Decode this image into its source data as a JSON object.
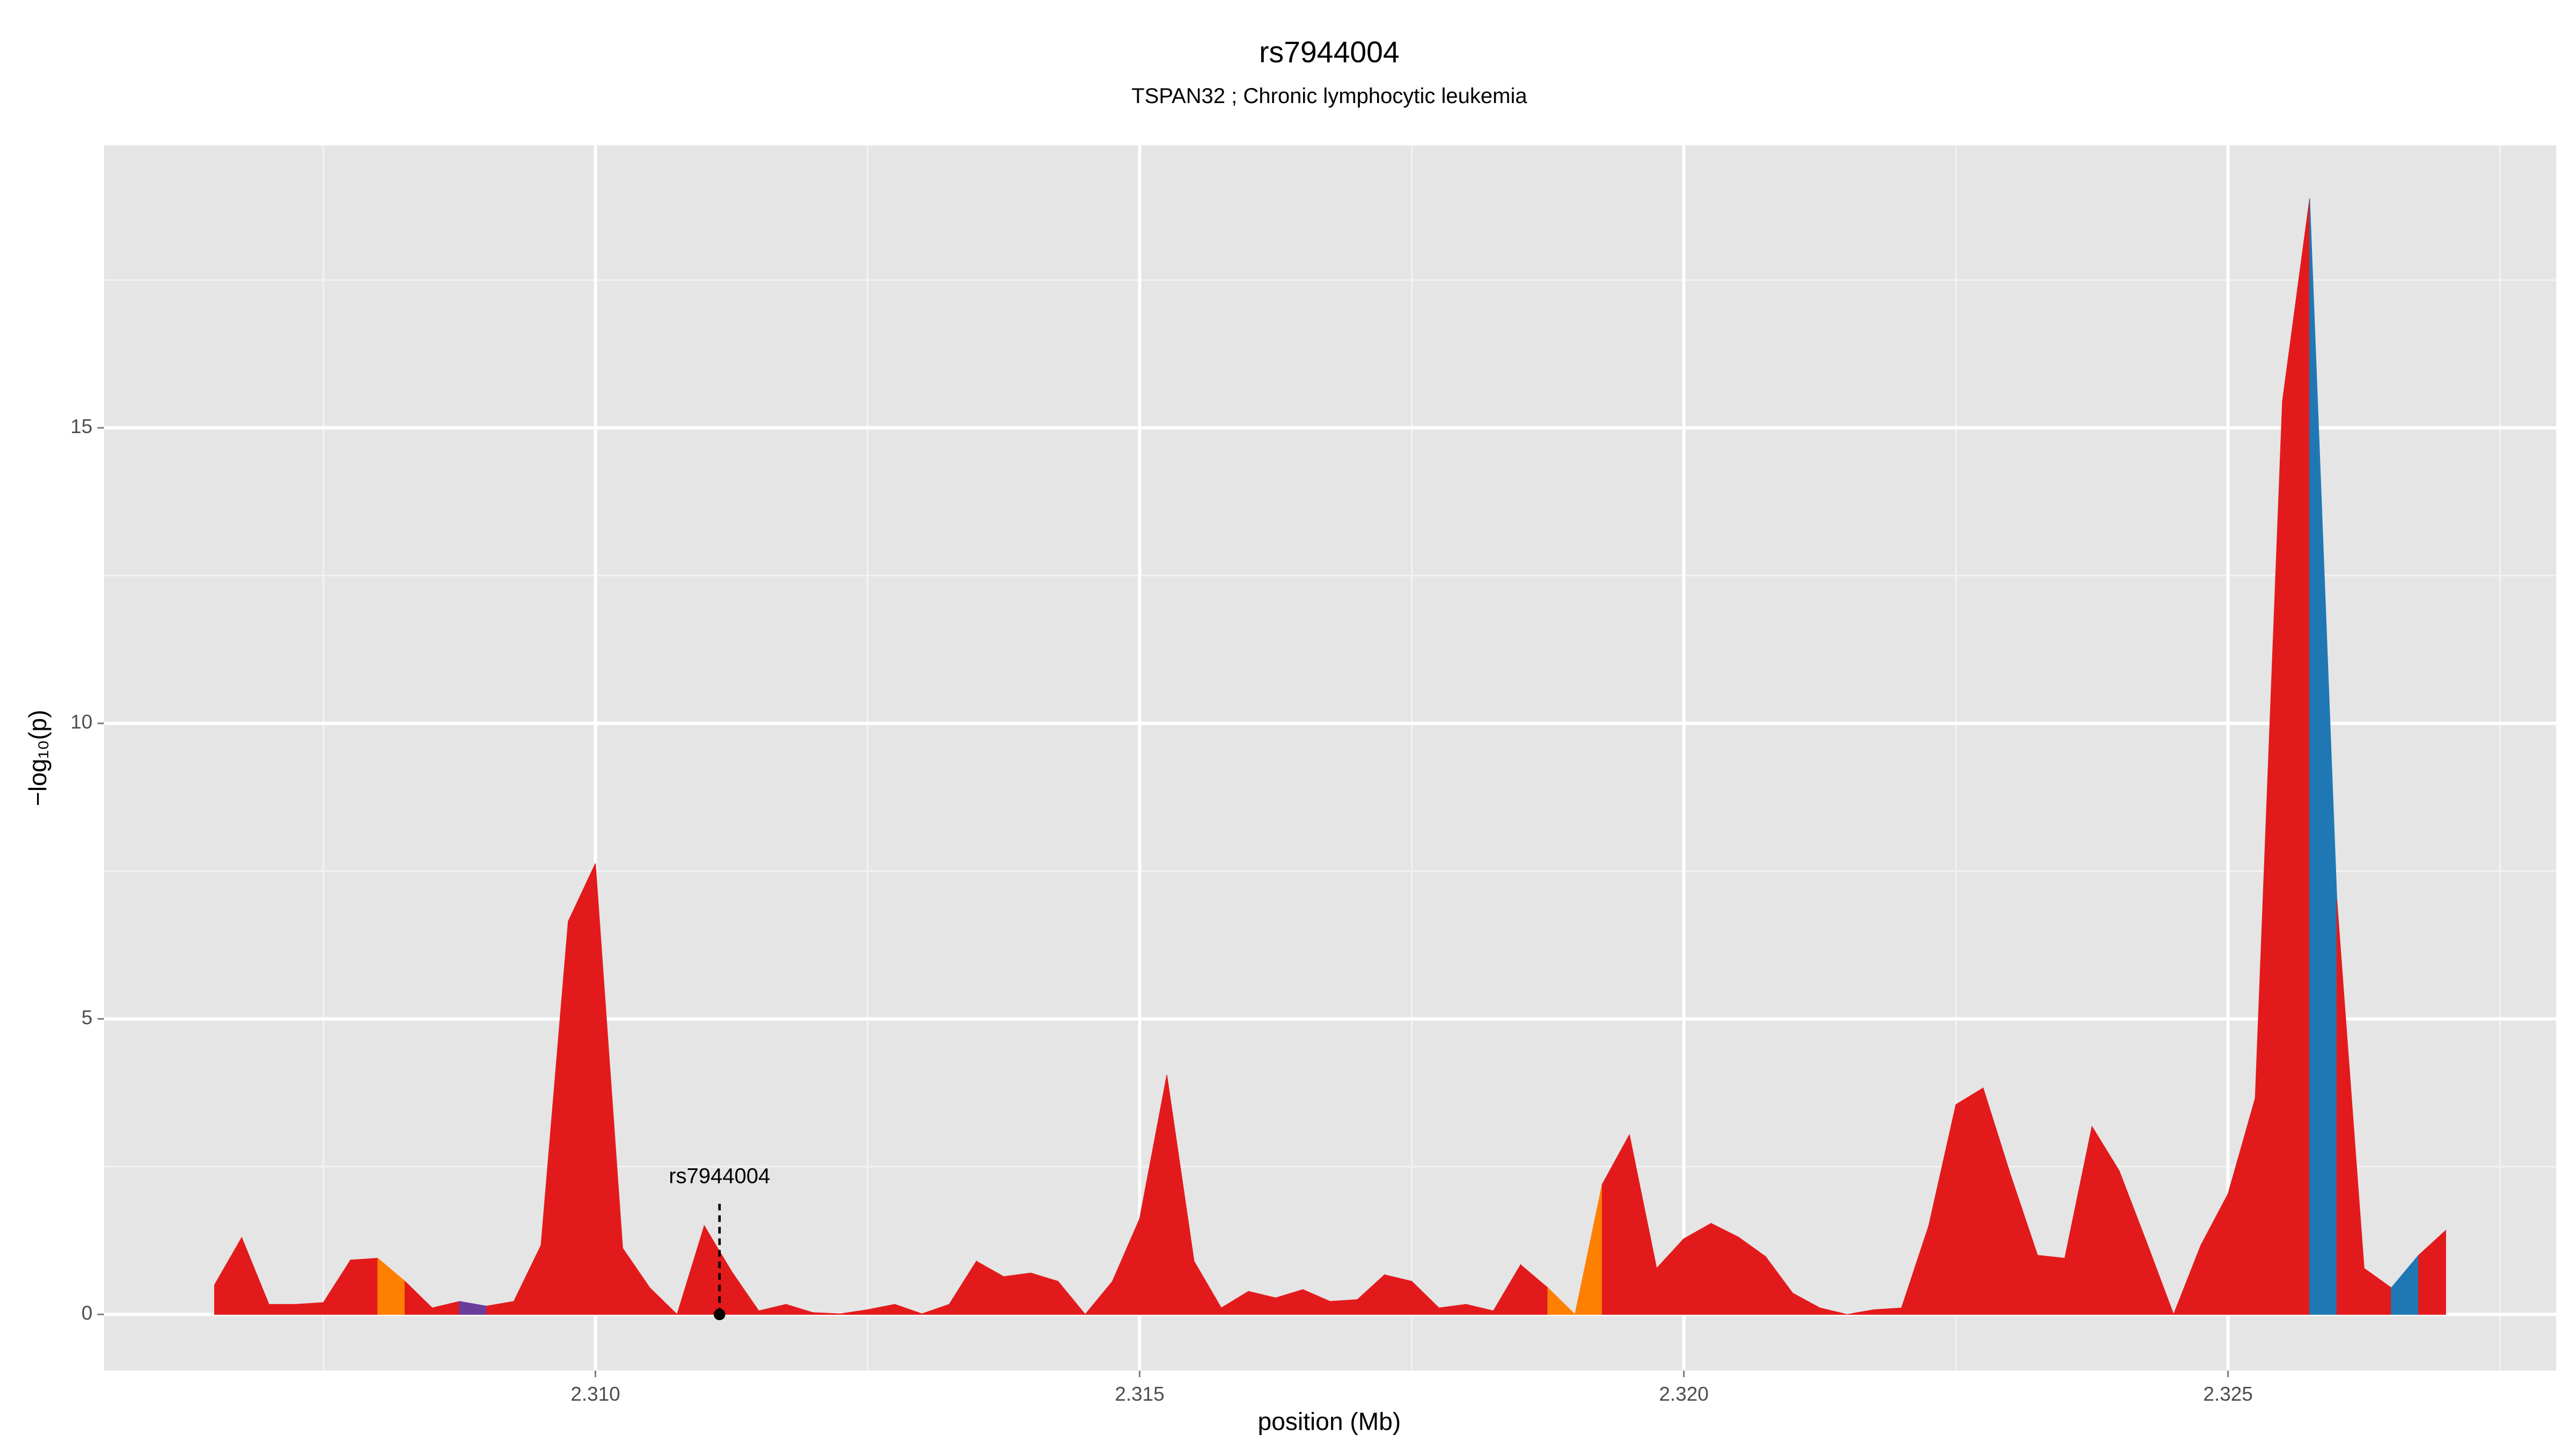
{
  "chart_data": {
    "type": "area",
    "title": "rs7944004",
    "subtitle": "TSPAN32 ; Chronic lymphocytic leukemia",
    "xlabel": "position (Mb)",
    "ylabel": "−log₁₀(p)",
    "xlim": [
      2.305485,
      2.328015
    ],
    "ylim": [
      -0.95,
      19.78
    ],
    "xticks": [
      {
        "value": 2.31,
        "label": "2.310"
      },
      {
        "value": 2.315,
        "label": "2.315"
      },
      {
        "value": 2.32,
        "label": "2.320"
      },
      {
        "value": 2.325,
        "label": "2.325"
      }
    ],
    "yticks": [
      0,
      5,
      10,
      15
    ],
    "x_minor_ticks": [
      2.3075,
      2.3125,
      2.3175,
      2.3225,
      2.3275
    ],
    "y_minor_ticks": [
      2.5,
      7.5,
      12.5,
      17.5
    ],
    "grid": true,
    "x": [
      2.3065,
      2.30675,
      2.307,
      2.30725,
      2.3075,
      2.30775,
      2.308,
      2.30825,
      2.3085,
      2.30875,
      2.309,
      2.30925,
      2.3095,
      2.30975,
      2.31,
      2.31025,
      2.3105,
      2.31075,
      2.311,
      2.31125,
      2.3115,
      2.31175,
      2.312,
      2.31225,
      2.3125,
      2.31275,
      2.313,
      2.31325,
      2.3135,
      2.31375,
      2.314,
      2.31425,
      2.3145,
      2.31475,
      2.315,
      2.31525,
      2.3155,
      2.31575,
      2.316,
      2.31625,
      2.3165,
      2.31675,
      2.317,
      2.31725,
      2.3175,
      2.31775,
      2.318,
      2.31825,
      2.3185,
      2.31875,
      2.319,
      2.31925,
      2.3195,
      2.31975,
      2.32,
      2.32025,
      2.3205,
      2.32075,
      2.321,
      2.32125,
      2.3215,
      2.32175,
      2.322,
      2.32225,
      2.3225,
      2.32275,
      2.323,
      2.32325,
      2.3235,
      2.32375,
      2.324,
      2.32425,
      2.3245,
      2.32475,
      2.325,
      2.32525,
      2.3255,
      2.32575,
      2.326,
      2.32625,
      2.3265,
      2.32675,
      2.327
    ],
    "values": [
      0.5,
      1.3,
      0.17,
      0.17,
      0.2,
      0.92,
      0.95,
      0.56,
      0.11,
      0.22,
      0.14,
      0.22,
      1.17,
      6.65,
      7.63,
      1.12,
      0.45,
      0,
      1.5,
      0.73,
      0.06,
      0.17,
      0.03,
      0.01,
      0.08,
      0.17,
      0.01,
      0.17,
      0.9,
      0.64,
      0.7,
      0.56,
      0,
      0.56,
      1.62,
      4.05,
      0.9,
      0.11,
      0.39,
      0.28,
      0.42,
      0.22,
      0.25,
      0.67,
      0.56,
      0.11,
      0.17,
      0.06,
      0.84,
      0.45,
      0,
      2.2,
      3.04,
      0.78,
      1.28,
      1.54,
      1.31,
      0.98,
      0.36,
      0.11,
      0,
      0.08,
      0.11,
      1.5,
      3.55,
      3.83,
      2.37,
      1.0,
      0.95,
      3.18,
      2.43,
      1.23,
      0,
      1.17,
      2.04,
      3.66,
      15.45,
      18.88,
      7.01,
      0.78,
      0.45,
      1.0,
      1.42
    ],
    "segment_colors": [
      "#e31a1c",
      "#e31a1c",
      "#e31a1c",
      "#e31a1c",
      "#e31a1c",
      "#e31a1c",
      "#ff7f00",
      "#e31a1c",
      "#e31a1c",
      "#6a3d9a",
      "#e31a1c",
      "#e31a1c",
      "#e31a1c",
      "#e31a1c",
      "#e31a1c",
      "#e31a1c",
      "#e31a1c",
      "#e31a1c",
      "#e31a1c",
      "#e31a1c",
      "#e31a1c",
      "#e31a1c",
      "#e31a1c",
      "#e31a1c",
      "#e31a1c",
      "#e31a1c",
      "#e31a1c",
      "#e31a1c",
      "#e31a1c",
      "#e31a1c",
      "#e31a1c",
      "#e31a1c",
      "#e31a1c",
      "#e31a1c",
      "#e31a1c",
      "#e31a1c",
      "#e31a1c",
      "#e31a1c",
      "#e31a1c",
      "#e31a1c",
      "#e31a1c",
      "#e31a1c",
      "#e31a1c",
      "#e31a1c",
      "#e31a1c",
      "#e31a1c",
      "#e31a1c",
      "#e31a1c",
      "#e31a1c",
      "#ff7f00",
      "#ff7f00",
      "#e31a1c",
      "#e31a1c",
      "#e31a1c",
      "#e31a1c",
      "#e31a1c",
      "#e31a1c",
      "#e31a1c",
      "#e31a1c",
      "#e31a1c",
      "#e31a1c",
      "#e31a1c",
      "#e31a1c",
      "#e31a1c",
      "#e31a1c",
      "#e31a1c",
      "#e31a1c",
      "#e31a1c",
      "#e31a1c",
      "#e31a1c",
      "#e31a1c",
      "#e31a1c",
      "#e31a1c",
      "#e31a1c",
      "#e31a1c",
      "#e31a1c",
      "#e31a1c",
      "#1f78b4",
      "#e31a1c",
      "#e31a1c",
      "#1f78b4",
      "#e31a1c"
    ],
    "annotation": {
      "text": "rs7944004",
      "x": 2.31114,
      "y": 0
    }
  }
}
